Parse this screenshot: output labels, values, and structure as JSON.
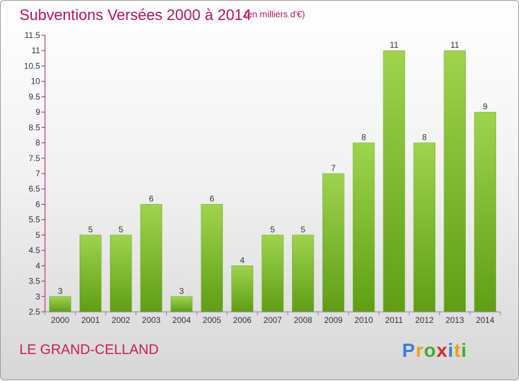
{
  "header": {
    "title": "Subventions Versées 2000 à 2014",
    "unit": "(en milliers d'€)"
  },
  "footer": {
    "town": "LE GRAND-CELLAND",
    "logo_letters": [
      "P",
      "r",
      "o",
      "x",
      "i",
      "t",
      "i"
    ],
    "logo_colors": [
      "#3a7fd8",
      "#e8a21a",
      "#4aa82e",
      "#d9262b",
      "#3a7fd8",
      "#e8a21a",
      "#4aa82e"
    ]
  },
  "chart_data": {
    "type": "bar",
    "title": "Subventions Versées 2000 à 2014",
    "categories": [
      "2000",
      "2001",
      "2002",
      "2003",
      "2004",
      "2005",
      "2006",
      "2007",
      "2008",
      "2009",
      "2010",
      "2011",
      "2012",
      "2013",
      "2014"
    ],
    "values": [
      3,
      5,
      5,
      6,
      3,
      6,
      4,
      5,
      5,
      7,
      8,
      11,
      8,
      11,
      9
    ],
    "data_labels": [
      "3",
      "5",
      "5",
      "6",
      "3",
      "6",
      "4",
      "5",
      "5",
      "7",
      "8",
      "11",
      "8",
      "11",
      "9"
    ],
    "ylim": [
      2.5,
      11.5
    ],
    "y_ticks": [
      "2.5",
      "3",
      "3.5",
      "4",
      "4.5",
      "5",
      "5.5",
      "6",
      "6.5",
      "7",
      "7.5",
      "8",
      "8.5",
      "9",
      "9.5",
      "10",
      "10.5",
      "11",
      "11.5"
    ],
    "grid": false,
    "bar_color": "#7fbf2a",
    "axis_color": "#b0155e"
  }
}
